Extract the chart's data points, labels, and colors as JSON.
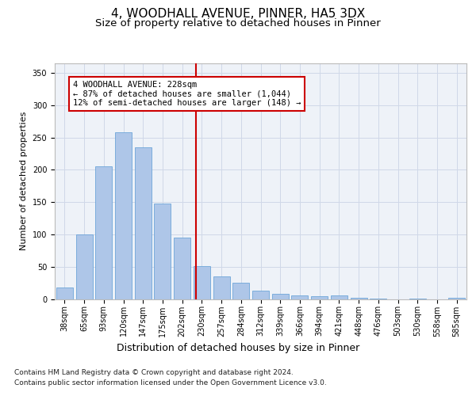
{
  "title": "4, WOODHALL AVENUE, PINNER, HA5 3DX",
  "subtitle": "Size of property relative to detached houses in Pinner",
  "xlabel": "Distribution of detached houses by size in Pinner",
  "ylabel": "Number of detached properties",
  "categories": [
    "38sqm",
    "65sqm",
    "93sqm",
    "120sqm",
    "147sqm",
    "175sqm",
    "202sqm",
    "230sqm",
    "257sqm",
    "284sqm",
    "312sqm",
    "339sqm",
    "366sqm",
    "394sqm",
    "421sqm",
    "448sqm",
    "476sqm",
    "503sqm",
    "530sqm",
    "558sqm",
    "585sqm"
  ],
  "values": [
    18,
    100,
    205,
    258,
    235,
    148,
    95,
    51,
    35,
    25,
    13,
    8,
    6,
    4,
    5,
    2,
    1,
    0,
    1,
    0,
    2
  ],
  "bar_color": "#aec6e8",
  "bar_edgecolor": "#5b9bd5",
  "grid_color": "#d0d8e8",
  "background_color": "#eef2f8",
  "red_line_x": 6.72,
  "annotation_text": "4 WOODHALL AVENUE: 228sqm\n← 87% of detached houses are smaller (1,044)\n12% of semi-detached houses are larger (148) →",
  "annotation_box_edgecolor": "#cc0000",
  "ylim": [
    0,
    365
  ],
  "yticks": [
    0,
    50,
    100,
    150,
    200,
    250,
    300,
    350
  ],
  "footer_line1": "Contains HM Land Registry data © Crown copyright and database right 2024.",
  "footer_line2": "Contains public sector information licensed under the Open Government Licence v3.0.",
  "title_fontsize": 11,
  "subtitle_fontsize": 9.5,
  "ylabel_fontsize": 8,
  "xlabel_fontsize": 9,
  "tick_fontsize": 7,
  "annotation_fontsize": 7.5,
  "footer_fontsize": 6.5
}
